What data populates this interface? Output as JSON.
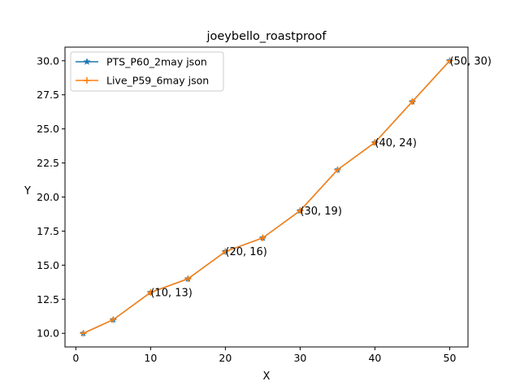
{
  "chart_data": {
    "type": "line",
    "title": "joeybello_roastproof",
    "xlabel": "X",
    "ylabel": "Y",
    "xlim": [
      -1.45,
      52.45
    ],
    "ylim": [
      9.0,
      31.0
    ],
    "xticks": [
      0,
      10,
      20,
      30,
      40,
      50
    ],
    "xtick_labels": [
      "0",
      "10",
      "20",
      "30",
      "40",
      "50"
    ],
    "yticks": [
      10.0,
      12.5,
      15.0,
      17.5,
      20.0,
      22.5,
      25.0,
      27.5,
      30.0
    ],
    "ytick_labels": [
      "10.0",
      "12.5",
      "15.0",
      "17.5",
      "20.0",
      "22.5",
      "25.0",
      "27.5",
      "30.0"
    ],
    "grid": false,
    "legend_position": "top-left",
    "x": [
      1,
      5,
      10,
      15,
      20,
      25,
      30,
      35,
      40,
      45,
      50
    ],
    "series": [
      {
        "name": "PTS_P60_2may json",
        "color": "#1f77b4",
        "marker": "star",
        "values": [
          10,
          11,
          13,
          14,
          16,
          17,
          19,
          22,
          24,
          27,
          30
        ]
      },
      {
        "name": "Live_P59_6may json",
        "color": "#ff7f0e",
        "marker": "plus",
        "values": [
          10,
          11,
          13,
          14,
          16,
          17,
          19,
          22,
          24,
          27,
          30
        ]
      }
    ],
    "annotations": [
      {
        "x": 10,
        "y": 13,
        "text": "(10, 13)"
      },
      {
        "x": 20,
        "y": 16,
        "text": "(20, 16)"
      },
      {
        "x": 30,
        "y": 19,
        "text": "(30, 19)"
      },
      {
        "x": 40,
        "y": 24,
        "text": "(40, 24)"
      },
      {
        "x": 50,
        "y": 30,
        "text": "(50, 30)"
      }
    ]
  }
}
